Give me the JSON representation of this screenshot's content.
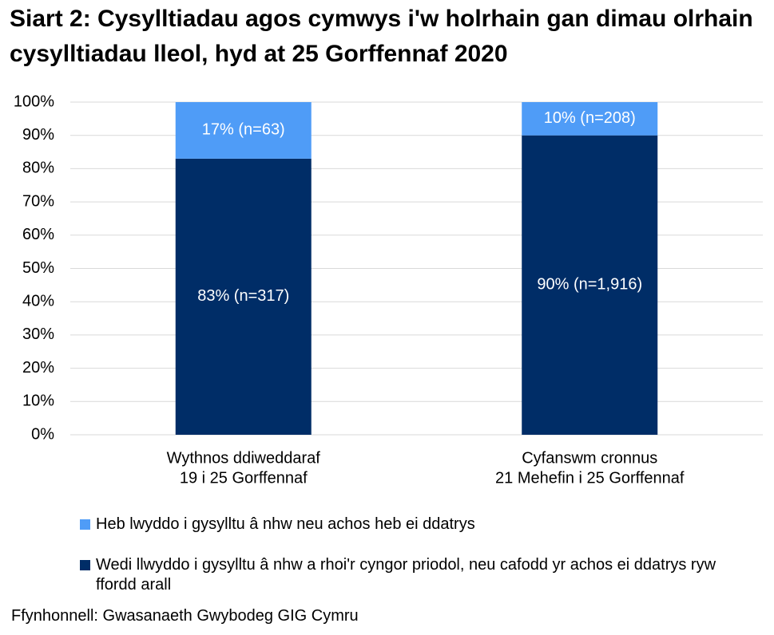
{
  "chart_data": {
    "type": "stacked_bar",
    "title": "Siart 2: Cysylltiadau agos cymwys i'w holrhain gan dimau olrhain cysylltiadau lleol, hyd at 25 Gorffennaf 2020",
    "categories": [
      [
        "Wythnos ddiweddaraf",
        "19 i 25 Gorffennaf"
      ],
      [
        "Cyfanswm cronnus",
        "21 Mehefin i 25 Gorffennaf"
      ]
    ],
    "series": [
      {
        "name": "Wedi llwyddo i gysylltu â nhw a rhoi'r cyngor priodol, neu cafodd yr achos ei ddatrys ryw ffordd arall",
        "color": "#002d67",
        "values": [
          83,
          90
        ],
        "value_labels": [
          "83% (n=317)",
          "90% (n=1,916)"
        ]
      },
      {
        "name": "Heb lwyddo i gysylltu â nhw neu achos heb ei ddatrys",
        "color": "#4f9cf7",
        "values": [
          17,
          10
        ],
        "value_labels": [
          "17% (n=63)",
          "10% (n=208)"
        ]
      }
    ],
    "ylim": [
      0,
      100
    ],
    "yticks": [
      {
        "value": 0,
        "label": "0%"
      },
      {
        "value": 10,
        "label": "10%"
      },
      {
        "value": 20,
        "label": "20%"
      },
      {
        "value": 30,
        "label": "30%"
      },
      {
        "value": 40,
        "label": "40%"
      },
      {
        "value": 50,
        "label": "50%"
      },
      {
        "value": 60,
        "label": "60%"
      },
      {
        "value": 70,
        "label": "70%"
      },
      {
        "value": 80,
        "label": "80%"
      },
      {
        "value": 90,
        "label": "90%"
      },
      {
        "value": 100,
        "label": "100%"
      }
    ],
    "grid": true,
    "source": "Ffynhonnell: Gwasanaeth Gwybodeg GIG Cymru"
  }
}
